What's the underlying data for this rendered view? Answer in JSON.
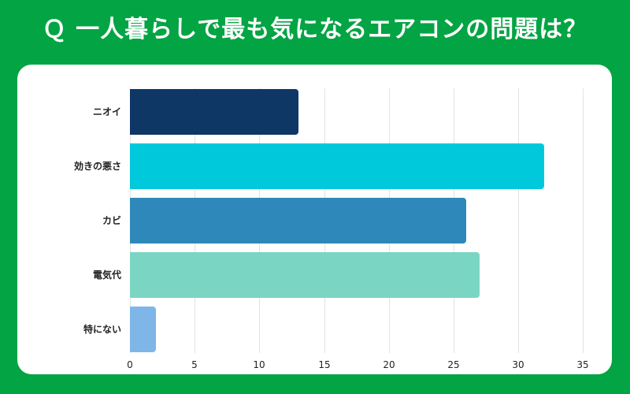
{
  "title": "Ｑ 一人暮らしで最も気になるエアコンの問題は？",
  "colors": {
    "background": "#02a443",
    "card": "#ffffff"
  },
  "chart_data": {
    "type": "bar",
    "orientation": "horizontal",
    "title": "Ｑ 一人暮らしで最も気になるエアコンの問題は？",
    "categories": [
      "ニオイ",
      "効きの悪さ",
      "カビ",
      "電気代",
      "特にない"
    ],
    "values": [
      13,
      32,
      26,
      27,
      2
    ],
    "colors": [
      "#0f3766",
      "#00c9dc",
      "#2e89ba",
      "#7bd5c3",
      "#7fb6e8"
    ],
    "xlabel": "",
    "ylabel": "",
    "xlim": [
      0,
      35
    ],
    "xticks": [
      "0",
      "5",
      "10",
      "15",
      "20",
      "25",
      "30",
      "35"
    ],
    "grid": true,
    "legend": "none"
  }
}
